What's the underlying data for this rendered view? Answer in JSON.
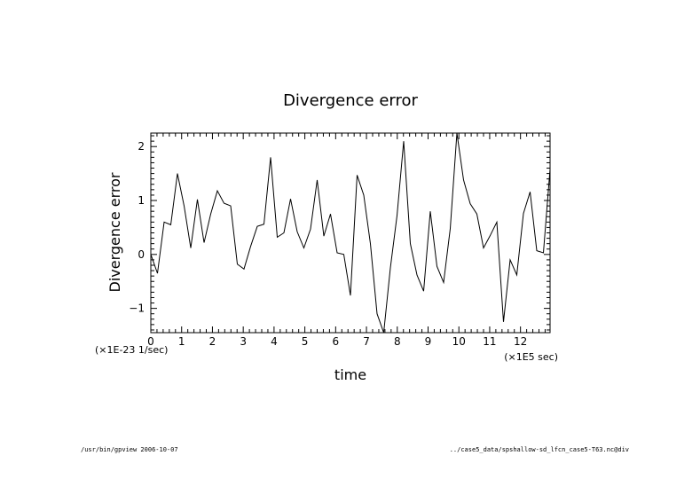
{
  "footer": {
    "left": "/usr/bin/gpview 2006-10-07",
    "right": "../case5_data/spshallow-sd_lfcn_case5-T63.nc@div"
  },
  "chart_data": {
    "type": "line",
    "title": "Divergence error",
    "xlabel": "time",
    "ylabel": "Divergence error",
    "x_multiplier": "(×1E5 sec)",
    "y_multiplier": "(×1E-23 1/sec)",
    "xlim": [
      0,
      12.96
    ],
    "ylim": [
      -1.45,
      2.25
    ],
    "xticks": [
      0,
      1,
      2,
      3,
      4,
      5,
      6,
      7,
      8,
      9,
      10,
      11,
      12
    ],
    "xtick_labels": [
      "0",
      "1",
      "2",
      "3",
      "4",
      "5",
      "6",
      "7",
      "8",
      "9",
      "10",
      "11",
      "12"
    ],
    "yticks": [
      -1,
      0,
      1,
      2
    ],
    "ytick_labels": [
      "−1",
      "0",
      "1",
      "2"
    ],
    "grid": false,
    "series": [
      {
        "x": [
          0,
          0.216,
          0.432,
          0.648,
          0.864,
          1.08,
          1.296,
          1.512,
          1.728,
          1.944,
          2.16,
          2.376,
          2.592,
          2.808,
          3.024,
          3.24,
          3.456,
          3.672,
          3.888,
          4.104,
          4.32,
          4.536,
          4.752,
          4.968,
          5.184,
          5.4,
          5.616,
          5.832,
          6.048,
          6.264,
          6.48,
          6.696,
          6.912,
          7.128,
          7.344,
          7.56,
          7.776,
          7.992,
          8.208,
          8.424,
          8.64,
          8.856,
          9.072,
          9.288,
          9.504,
          9.72,
          9.936,
          10.152,
          10.368,
          10.584,
          10.8,
          11.016,
          11.232,
          11.448,
          11.664,
          11.88,
          12.096,
          12.312,
          12.528,
          12.744,
          12.96
        ],
        "values": [
          0.0,
          -0.35,
          0.6,
          0.55,
          1.5,
          0.9,
          0.12,
          1.02,
          0.22,
          0.75,
          1.18,
          0.95,
          0.9,
          -0.18,
          -0.27,
          0.15,
          0.52,
          0.56,
          1.8,
          0.32,
          0.4,
          1.03,
          0.42,
          0.12,
          0.47,
          1.38,
          0.34,
          0.75,
          0.03,
          0.0,
          -0.76,
          1.47,
          1.1,
          0.2,
          -1.1,
          -1.45,
          -0.25,
          0.72,
          2.1,
          0.2,
          -0.38,
          -0.68,
          0.8,
          -0.22,
          -0.52,
          0.48,
          2.25,
          1.38,
          0.94,
          0.75,
          0.12,
          0.35,
          0.6,
          -1.25,
          -0.1,
          -0.38,
          0.76,
          1.16,
          0.07,
          0.03,
          1.58
        ]
      }
    ]
  }
}
